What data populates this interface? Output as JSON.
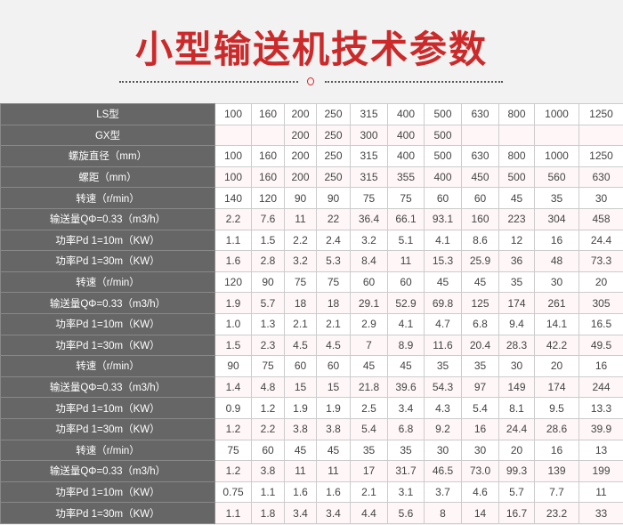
{
  "title": "小型输送机技术参数",
  "accent_color": "#cc2a2a",
  "table": {
    "rows": [
      {
        "label": "LS型",
        "values": [
          "100",
          "160",
          "200",
          "250",
          "315",
          "400",
          "500",
          "630",
          "800",
          "1000",
          "1250"
        ]
      },
      {
        "label": "GX型",
        "values": [
          "",
          "",
          "200",
          "250",
          "300",
          "400",
          "500",
          "",
          "",
          "",
          ""
        ]
      },
      {
        "label": "螺旋直径（mm）",
        "values": [
          "100",
          "160",
          "200",
          "250",
          "315",
          "400",
          "500",
          "630",
          "800",
          "1000",
          "1250"
        ]
      },
      {
        "label": "螺距（mm）",
        "values": [
          "100",
          "160",
          "200",
          "250",
          "315",
          "355",
          "400",
          "450",
          "500",
          "560",
          "630"
        ]
      },
      {
        "label": "转速（r/min）",
        "values": [
          "140",
          "120",
          "90",
          "90",
          "75",
          "75",
          "60",
          "60",
          "45",
          "35",
          "30"
        ]
      },
      {
        "label": "输送量QΦ=0.33（m3/h）",
        "values": [
          "2.2",
          "7.6",
          "11",
          "22",
          "36.4",
          "66.1",
          "93.1",
          "160",
          "223",
          "304",
          "458"
        ]
      },
      {
        "label": "功率Pd 1=10m（KW）",
        "values": [
          "1.1",
          "1.5",
          "2.2",
          "2.4",
          "3.2",
          "5.1",
          "4.1",
          "8.6",
          "12",
          "16",
          "24.4"
        ]
      },
      {
        "label": "功率Pd 1=30m（KW）",
        "values": [
          "1.6",
          "2.8",
          "3.2",
          "5.3",
          "8.4",
          "11",
          "15.3",
          "25.9",
          "36",
          "48",
          "73.3"
        ]
      },
      {
        "label": "转速（r/min）",
        "values": [
          "120",
          "90",
          "75",
          "75",
          "60",
          "60",
          "45",
          "45",
          "35",
          "30",
          "20"
        ]
      },
      {
        "label": "输送量QΦ=0.33（m3/h）",
        "values": [
          "1.9",
          "5.7",
          "18",
          "18",
          "29.1",
          "52.9",
          "69.8",
          "125",
          "174",
          "261",
          "305"
        ]
      },
      {
        "label": "功率Pd 1=10m（KW）",
        "values": [
          "1.0",
          "1.3",
          "2.1",
          "2.1",
          "2.9",
          "4.1",
          "4.7",
          "6.8",
          "9.4",
          "14.1",
          "16.5"
        ]
      },
      {
        "label": "功率Pd 1=30m（KW）",
        "values": [
          "1.5",
          "2.3",
          "4.5",
          "4.5",
          "7",
          "8.9",
          "11.6",
          "20.4",
          "28.3",
          "42.2",
          "49.5"
        ]
      },
      {
        "label": "转速（r/min）",
        "values": [
          "90",
          "75",
          "60",
          "60",
          "45",
          "45",
          "35",
          "35",
          "30",
          "20",
          "16"
        ]
      },
      {
        "label": "输送量QΦ=0.33（m3/h）",
        "values": [
          "1.4",
          "4.8",
          "15",
          "15",
          "21.8",
          "39.6",
          "54.3",
          "97",
          "149",
          "174",
          "244"
        ]
      },
      {
        "label": "功率Pd 1=10m（KW）",
        "values": [
          "0.9",
          "1.2",
          "1.9",
          "1.9",
          "2.5",
          "3.4",
          "4.3",
          "5.4",
          "8.1",
          "9.5",
          "13.3"
        ]
      },
      {
        "label": "功率Pd 1=30m（KW）",
        "values": [
          "1.2",
          "2.2",
          "3.8",
          "3.8",
          "5.4",
          "6.8",
          "9.2",
          "16",
          "24.4",
          "28.6",
          "39.9"
        ]
      },
      {
        "label": "转速（r/min）",
        "values": [
          "75",
          "60",
          "45",
          "45",
          "35",
          "35",
          "30",
          "30",
          "20",
          "16",
          "13"
        ]
      },
      {
        "label": "输送量QΦ=0.33（m3/h）",
        "values": [
          "1.2",
          "3.8",
          "11",
          "11",
          "17",
          "31.7",
          "46.5",
          "73.0",
          "99.3",
          "139",
          "199"
        ]
      },
      {
        "label": "功率Pd 1=10m（KW）",
        "values": [
          "0.75",
          "1.1",
          "1.6",
          "1.6",
          "2.1",
          "3.1",
          "3.7",
          "4.6",
          "5.7",
          "7.7",
          "11"
        ]
      },
      {
        "label": "功率Pd 1=30m（KW）",
        "values": [
          "1.1",
          "1.8",
          "3.4",
          "3.4",
          "4.4",
          "5.6",
          "8",
          "14",
          "16.7",
          "23.2",
          "33"
        ]
      }
    ]
  }
}
